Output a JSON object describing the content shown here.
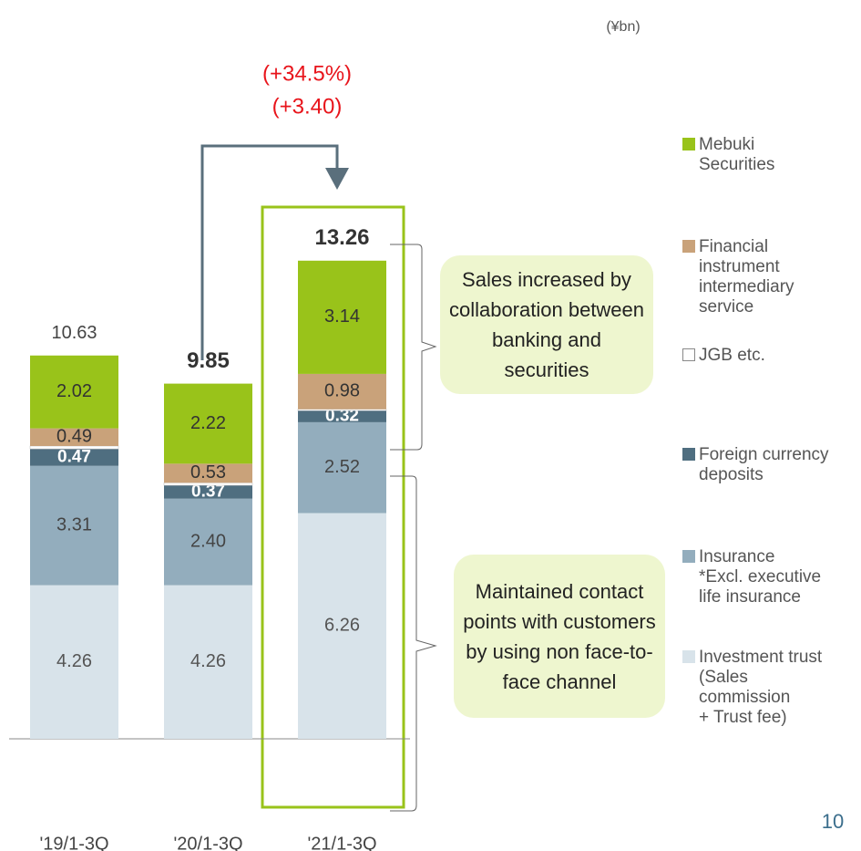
{
  "chart_data": {
    "type": "stacked_bar",
    "unit": "(¥bn)",
    "categories": [
      "'19/1-3Q",
      "'20/1-3Q",
      "'21/1-3Q"
    ],
    "series": [
      {
        "name": "Investment trust\n(Sales\ncommission\n+ Trust fee)",
        "color": "#d8e3ea",
        "values": [
          4.26,
          4.26,
          6.26
        ],
        "value_labels": [
          "4.26",
          "4.26",
          "6.26"
        ]
      },
      {
        "name": "Insurance\n*Excl. executive\nlife insurance",
        "color": "#93adbd",
        "values": [
          3.31,
          2.4,
          2.52
        ],
        "value_labels": [
          "3.31",
          "2.40",
          "2.52"
        ]
      },
      {
        "name": "Foreign currency\ndeposits",
        "color": "#4f6e80",
        "values": [
          0.47,
          0.37,
          0.32
        ],
        "value_labels": [
          "0.47",
          "0.37",
          "0.32"
        ]
      },
      {
        "name": "JGB etc.",
        "color": "#ffffff",
        "values": [
          0.08,
          0.07,
          0.04
        ]
      },
      {
        "name": "Financial\ninstrument\nintermediary\nservice",
        "color": "#c9a27a",
        "values": [
          0.49,
          0.53,
          0.98
        ],
        "value_labels": [
          "0.49",
          "0.53",
          "0.98"
        ]
      },
      {
        "name": "Mebuki\nSecurities",
        "color": "#99c31a",
        "values": [
          2.02,
          2.22,
          3.14
        ],
        "value_labels": [
          "2.02",
          "2.22",
          "3.14"
        ]
      }
    ],
    "totals": [
      10.63,
      9.85,
      13.26
    ],
    "ylim": [
      0,
      15
    ],
    "annotations": [
      "(+34.5%)",
      "(+3.40)"
    ],
    "callouts": [
      "Sales increased by collaboration between banking and securities",
      "Maintained contact points with customers by using non face-to-face channel"
    ]
  },
  "page_number": "10"
}
